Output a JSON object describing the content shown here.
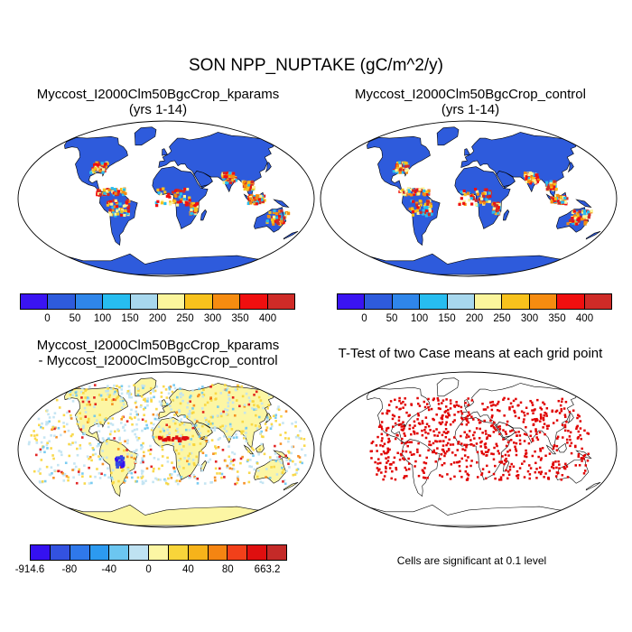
{
  "title": "SON NPP_NUPTAKE (gC/m^2/y)",
  "panels": {
    "top_left": {
      "title_line1": "Myccost_I2000Clm50BgcCrop_kparams",
      "title_line2": "(yrs 1-14)"
    },
    "top_right": {
      "title_line1": "Myccost_I2000Clm50BgcCrop_control",
      "title_line2": "(yrs 1-14)"
    },
    "bottom_left": {
      "title_line1": "Myccost_I2000Clm50BgcCrop_kparams",
      "title_line2": "- Myccost_I2000Clm50BgcCrop_control"
    },
    "bottom_right": {
      "title_line1": "T-Test of two Case means at each grid point"
    }
  },
  "colorbars": {
    "main": {
      "colors": [
        "#3a14f2",
        "#2e5bdc",
        "#2f86ea",
        "#27bdf0",
        "#a8d8ee",
        "#fbf59c",
        "#f8c21c",
        "#f68c10",
        "#f00f0f",
        "#cf2b27"
      ],
      "labels": [
        "0",
        "50",
        "100",
        "150",
        "200",
        "250",
        "300",
        "350",
        "400"
      ]
    },
    "diff": {
      "colors": [
        "#3511f0",
        "#3352e0",
        "#2f78ea",
        "#2c9af0",
        "#6cc6f0",
        "#bfe2f2",
        "#fcf6a4",
        "#f8d53a",
        "#f6b31a",
        "#f58512",
        "#f2401a",
        "#df0f0f",
        "#c42a28"
      ],
      "labels": [
        "-914.6",
        "-80",
        "-40",
        "0",
        "40",
        "80",
        "663.2"
      ]
    }
  },
  "note": "Cells are significant at 0.1 level"
}
